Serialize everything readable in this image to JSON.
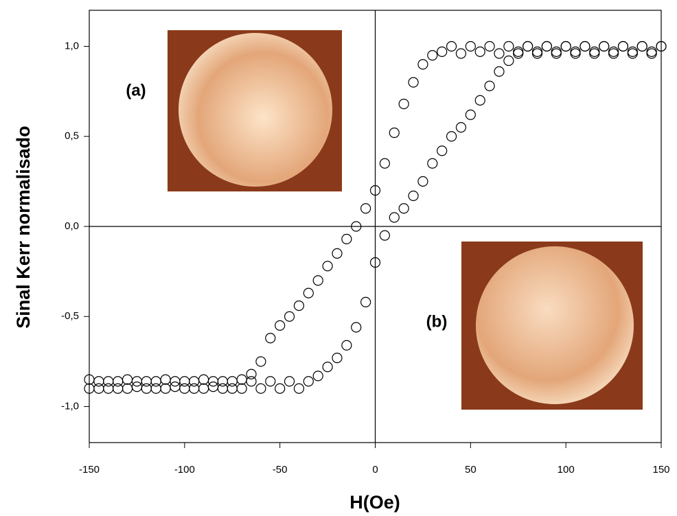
{
  "chart_data": {
    "type": "scatter",
    "xlabel": "H(Oe)",
    "ylabel": "Sinal Kerr normalisado",
    "annotations": [
      "(a)",
      "(b)"
    ],
    "xlim": [
      -150,
      150
    ],
    "xticks": [
      -150,
      -100,
      -50,
      0,
      50,
      100,
      150
    ],
    "ylim": [
      -1.2,
      1.2
    ],
    "yticks": [
      {
        "value": -1.0,
        "label": "-1,0"
      },
      {
        "value": -0.5,
        "label": "-0,5"
      },
      {
        "value": 0,
        "label": "0,0"
      },
      {
        "value": 0.5,
        "label": "0,5"
      },
      {
        "value": 1.0,
        "label": "1,0"
      }
    ],
    "marker_color": "#000000",
    "series": [
      {
        "x": [
          -150,
          -145,
          -140,
          -135,
          -130,
          -125,
          -120,
          -115,
          -110,
          -105,
          -100,
          -95,
          -90,
          -85,
          -80,
          -75,
          -70,
          -65,
          -60,
          -55,
          -50,
          -45,
          -40,
          -35,
          -30,
          -25,
          -20,
          -15,
          -10,
          -5,
          0,
          5,
          10,
          15,
          20,
          25,
          30,
          35,
          40,
          45,
          50,
          55,
          60,
          65,
          70,
          75,
          80,
          85,
          90,
          95,
          100,
          105,
          110,
          115,
          120,
          125,
          130,
          135,
          140,
          145,
          150
        ],
        "values": [
          -0.85,
          -0.9,
          -0.86,
          -0.9,
          -0.85,
          -0.89,
          -0.86,
          -0.9,
          -0.85,
          -0.89,
          -0.86,
          -0.9,
          -0.85,
          -0.89,
          -0.86,
          -0.9,
          -0.85,
          -0.82,
          -0.75,
          -0.62,
          -0.55,
          -0.5,
          -0.44,
          -0.37,
          -0.3,
          -0.22,
          -0.15,
          -0.07,
          0.0,
          0.1,
          0.2,
          0.35,
          0.52,
          0.68,
          0.8,
          0.9,
          0.95,
          0.97,
          1.0,
          0.96,
          1.0,
          0.97,
          1.0,
          0.96,
          1.0,
          0.97,
          1.0,
          0.96,
          1.0,
          0.97,
          1.0,
          0.96,
          1.0,
          0.97,
          1.0,
          0.96,
          1.0,
          0.97,
          1.0,
          0.96,
          1.0
        ]
      },
      {
        "x": [
          -150,
          -145,
          -140,
          -135,
          -130,
          -125,
          -120,
          -115,
          -110,
          -105,
          -100,
          -95,
          -90,
          -85,
          -80,
          -75,
          -70,
          -65,
          -60,
          -55,
          -50,
          -45,
          -40,
          -35,
          -30,
          -25,
          -20,
          -15,
          -10,
          -5,
          0,
          5,
          10,
          15,
          20,
          25,
          30,
          35,
          40,
          45,
          50,
          55,
          60,
          65,
          70,
          75,
          80,
          85,
          90,
          95,
          100,
          105,
          110,
          115,
          120,
          125,
          130,
          135,
          140,
          145,
          150
        ],
        "values": [
          -0.9,
          -0.86,
          -0.9,
          -0.86,
          -0.9,
          -0.86,
          -0.9,
          -0.86,
          -0.9,
          -0.86,
          -0.9,
          -0.86,
          -0.9,
          -0.86,
          -0.9,
          -0.86,
          -0.9,
          -0.86,
          -0.9,
          -0.86,
          -0.9,
          -0.86,
          -0.9,
          -0.86,
          -0.83,
          -0.78,
          -0.73,
          -0.66,
          -0.56,
          -0.42,
          -0.2,
          -0.05,
          0.05,
          0.1,
          0.17,
          0.25,
          0.35,
          0.42,
          0.5,
          0.55,
          0.62,
          0.7,
          0.78,
          0.86,
          0.92,
          0.96,
          1.0,
          0.97,
          1.0,
          0.96,
          1.0,
          0.97,
          1.0,
          0.96,
          1.0,
          0.97,
          1.0,
          0.96,
          1.0,
          0.97,
          1.0
        ]
      }
    ]
  }
}
